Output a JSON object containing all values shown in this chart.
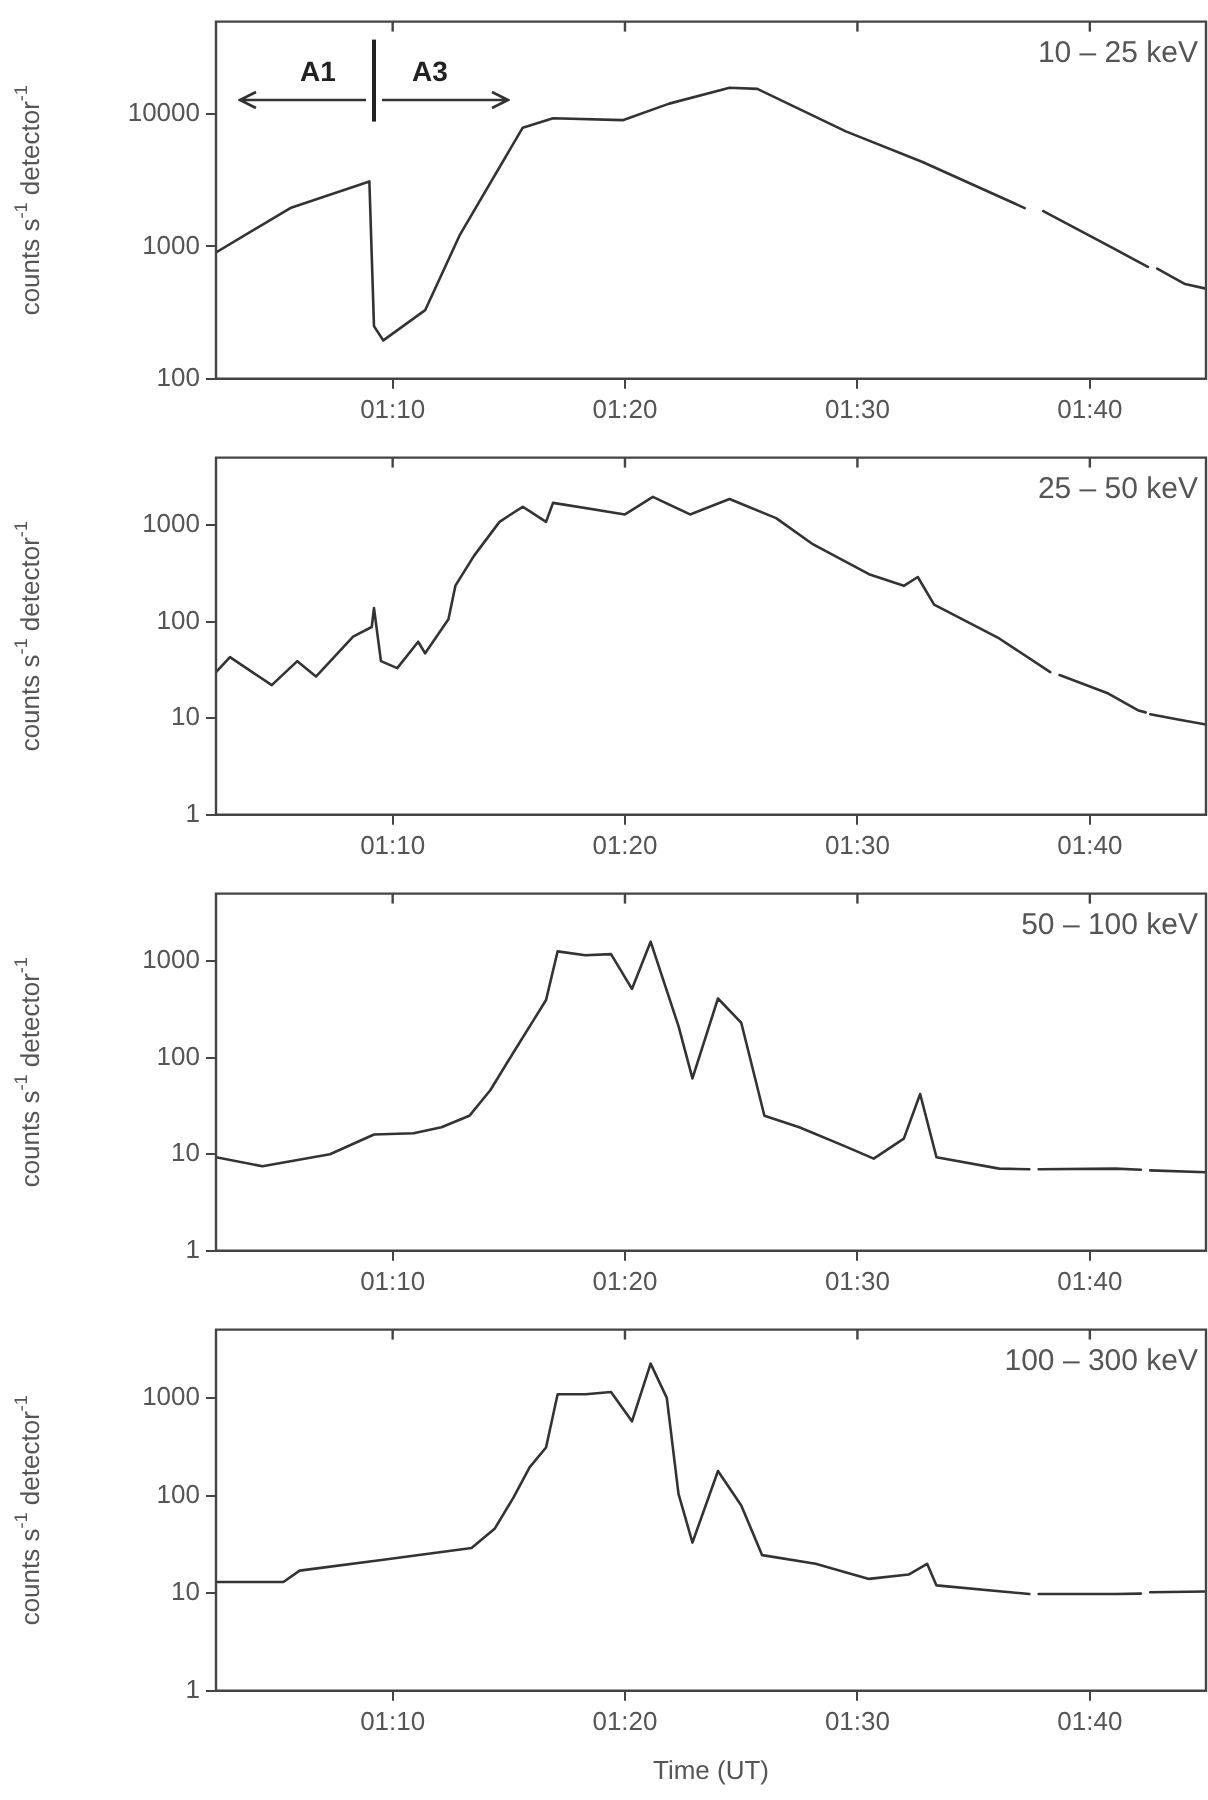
{
  "chart_data": [
    {
      "type": "line",
      "title": "10 – 25 keV",
      "ylabel": "counts s$^{-1}$ detector$^{-1}$",
      "log": "y",
      "line_style": "solid",
      "marker": "none",
      "xlim": [
        1.04,
        1.75
      ],
      "xticks": [
        {
          "value": 1.1667,
          "label": "01:10"
        },
        {
          "value": 1.3333,
          "label": "01:20"
        },
        {
          "value": 1.5,
          "label": "01:30"
        },
        {
          "value": 1.6667,
          "label": "01:40"
        }
      ],
      "ylim": [
        100,
        50000
      ],
      "yticks": [
        100,
        1000,
        10000
      ],
      "ref_lines": [
        {
          "axis": "x",
          "value": 1.1533,
          "color": "#222222"
        }
      ],
      "annotations": [
        "A1",
        "A3"
      ],
      "series": [
        {
          "color": "#333333",
          "x": [
            1.04,
            1.0933,
            1.15,
            1.1533,
            1.16,
            1.19,
            1.215,
            1.26,
            1.2817,
            1.3317,
            1.365,
            1.4083,
            1.4283,
            1.4917,
            1.5467,
            1.62,
            1.6267,
            1.6333,
            1.685,
            1.7083,
            1.7117,
            1.715,
            1.735,
            1.75
          ],
          "values": [
            900,
            1950,
            3100,
            250,
            195,
            330,
            1230,
            7900,
            9300,
            9000,
            12000,
            15800,
            15500,
            7400,
            4350,
            1950,
            null,
            1850,
            950,
            700,
            null,
            680,
            520,
            480
          ]
        }
      ]
    },
    {
      "type": "line",
      "title": "25 – 50 keV",
      "ylabel": "counts s$^{-1}$ detector$^{-1}$",
      "log": "y",
      "line_style": "solid",
      "marker": "none",
      "xlim": [
        1.04,
        1.75
      ],
      "xticks": [
        {
          "value": 1.1667,
          "label": "01:10"
        },
        {
          "value": 1.3333,
          "label": "01:20"
        },
        {
          "value": 1.5,
          "label": "01:30"
        },
        {
          "value": 1.6667,
          "label": "01:40"
        }
      ],
      "ylim": [
        1,
        5000
      ],
      "yticks": [
        1,
        10,
        100,
        1000
      ],
      "series": [
        {
          "color": "#333333",
          "x": [
            1.04,
            1.05,
            1.08,
            1.0983,
            1.1117,
            1.1383,
            1.1517,
            1.1533,
            1.1583,
            1.17,
            1.185,
            1.19,
            1.2067,
            1.2117,
            1.225,
            1.2433,
            1.26,
            1.2767,
            1.2817,
            1.3333,
            1.3533,
            1.38,
            1.4083,
            1.4417,
            1.4683,
            1.5083,
            1.5333,
            1.5433,
            1.555,
            1.6017,
            1.6383,
            1.6417,
            1.645,
            1.68,
            1.7017,
            1.7067,
            1.7083,
            1.71,
            1.73,
            1.75
          ],
          "values": [
            30,
            43,
            22,
            39,
            27,
            70,
            88,
            138,
            39,
            33,
            62,
            47,
            106,
            236,
            480,
            1080,
            1550,
            1080,
            1700,
            1290,
            1960,
            1290,
            1860,
            1180,
            630,
            310,
            235,
            290,
            150,
            67,
            30,
            null,
            28,
            18,
            12,
            11.5,
            null,
            11,
            9.7,
            8.6
          ]
        }
      ]
    },
    {
      "type": "line",
      "title": "50 – 100 keV",
      "ylabel": "counts s$^{-1}$ detector$^{-1}$",
      "log": "y",
      "line_style": "solid",
      "marker": "none",
      "xlim": [
        1.04,
        1.75
      ],
      "xticks": [
        {
          "value": 1.1667,
          "label": "01:10"
        },
        {
          "value": 1.3333,
          "label": "01:20"
        },
        {
          "value": 1.5,
          "label": "01:30"
        },
        {
          "value": 1.6667,
          "label": "01:40"
        }
      ],
      "ylim": [
        1,
        5000
      ],
      "yticks": [
        1,
        10,
        100,
        1000
      ],
      "series": [
        {
          "color": "#333333",
          "x": [
            1.04,
            1.0733,
            1.1217,
            1.1533,
            1.1817,
            1.2017,
            1.2217,
            1.2367,
            1.2533,
            1.2683,
            1.2767,
            1.285,
            1.305,
            1.3233,
            1.3383,
            1.3517,
            1.3717,
            1.3817,
            1.4,
            1.4167,
            1.4333,
            1.4583,
            1.4917,
            1.5117,
            1.5333,
            1.545,
            1.5567,
            1.6017,
            1.6233,
            1.6267,
            1.63,
            1.685,
            1.7033,
            1.7067,
            1.71,
            1.75
          ],
          "values": [
            9.3,
            7.5,
            10,
            16,
            16.5,
            19,
            25,
            46,
            113,
            252,
            395,
            1260,
            1150,
            1180,
            515,
            1590,
            212,
            61,
            410,
            230,
            25,
            19,
            12,
            9,
            14.5,
            42,
            9.3,
            7.1,
            7,
            null,
            7,
            7.1,
            6.9,
            null,
            6.8,
            6.5
          ]
        }
      ]
    },
    {
      "type": "line",
      "title": "100 – 300 keV",
      "xlabel": "Time (UT)",
      "ylabel": "counts s$^{-1}$ detector$^{-1}$",
      "log": "y",
      "line_style": "solid",
      "marker": "none",
      "xlim": [
        1.04,
        1.75
      ],
      "xticks": [
        {
          "value": 1.1667,
          "label": "01:10"
        },
        {
          "value": 1.3333,
          "label": "01:20"
        },
        {
          "value": 1.5,
          "label": "01:30"
        },
        {
          "value": 1.6667,
          "label": "01:40"
        }
      ],
      "ylim": [
        1,
        5000
      ],
      "yticks": [
        1,
        10,
        100,
        1000
      ],
      "series": [
        {
          "color": "#333333",
          "x": [
            1.04,
            1.0883,
            1.1,
            1.16,
            1.2233,
            1.24,
            1.2533,
            1.265,
            1.2767,
            1.285,
            1.305,
            1.3233,
            1.3383,
            1.3517,
            1.3633,
            1.3717,
            1.3817,
            1.4,
            1.4167,
            1.4317,
            1.47,
            1.5083,
            1.5367,
            1.55,
            1.5567,
            1.6233,
            1.6267,
            1.63,
            1.685,
            1.7033,
            1.7067,
            1.71,
            1.75
          ],
          "values": [
            13,
            13,
            17,
            22,
            29,
            46,
            95,
            195,
            310,
            1090,
            1090,
            1150,
            575,
            2240,
            1000,
            104,
            33,
            178,
            79,
            24.5,
            20,
            14,
            15.5,
            20,
            12,
            9.8,
            null,
            9.8,
            9.8,
            9.9,
            null,
            10.2,
            10.4
          ]
        }
      ]
    }
  ]
}
